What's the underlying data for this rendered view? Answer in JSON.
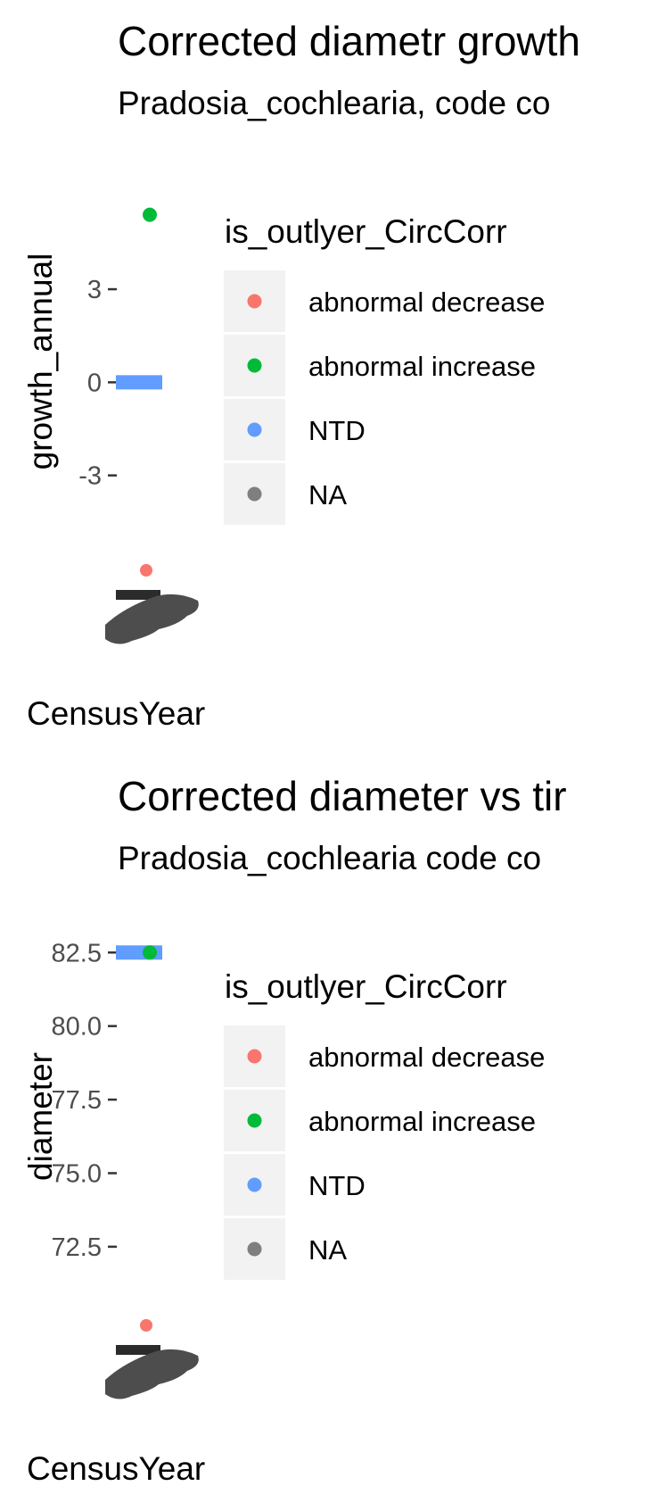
{
  "legend": {
    "title": "is_outlyer_CircCorr",
    "items": [
      {
        "label": "abnormal decrease",
        "color": "#F8766D"
      },
      {
        "label": "abnormal increase",
        "color": "#00BA38"
      },
      {
        "label": "NTD",
        "color": "#619CFF"
      },
      {
        "label": "NA",
        "color": "#7F7F7F"
      }
    ]
  },
  "chart_data": [
    {
      "type": "scatter",
      "title": "Corrected diametr growth",
      "subtitle": "Pradosia_cochlearia, code co",
      "xlabel": "CensusYear",
      "ylabel": "growth_annual",
      "yticks": [
        3,
        0,
        -3
      ],
      "ytick_labels": [
        "3",
        "0",
        "-3"
      ],
      "ylim": [
        -5.8,
        7.0
      ],
      "series": [
        {
          "name": "abnormal increase",
          "points": [
            {
              "y": 5.4
            }
          ]
        },
        {
          "name": "NTD",
          "points": [
            {
              "y": 0
            }
          ]
        }
      ]
    },
    {
      "type": "scatter",
      "title": "Corrected diameter vs tir",
      "subtitle": "Pradosia_cochlearia code co",
      "xlabel": "CensusYear",
      "ylabel": "diameter",
      "yticks": [
        82.5,
        80.0,
        77.5,
        75.0,
        72.5
      ],
      "ytick_labels": [
        "82.5",
        "80.0",
        "77.5",
        "75.0",
        "72.5"
      ],
      "ylim": [
        70.1,
        83.6
      ],
      "series": [
        {
          "name": "NTD",
          "points": [
            {
              "y": 82.5
            }
          ]
        },
        {
          "name": "abnormal increase",
          "points": [
            {
              "y": 82.5
            }
          ]
        }
      ]
    }
  ]
}
